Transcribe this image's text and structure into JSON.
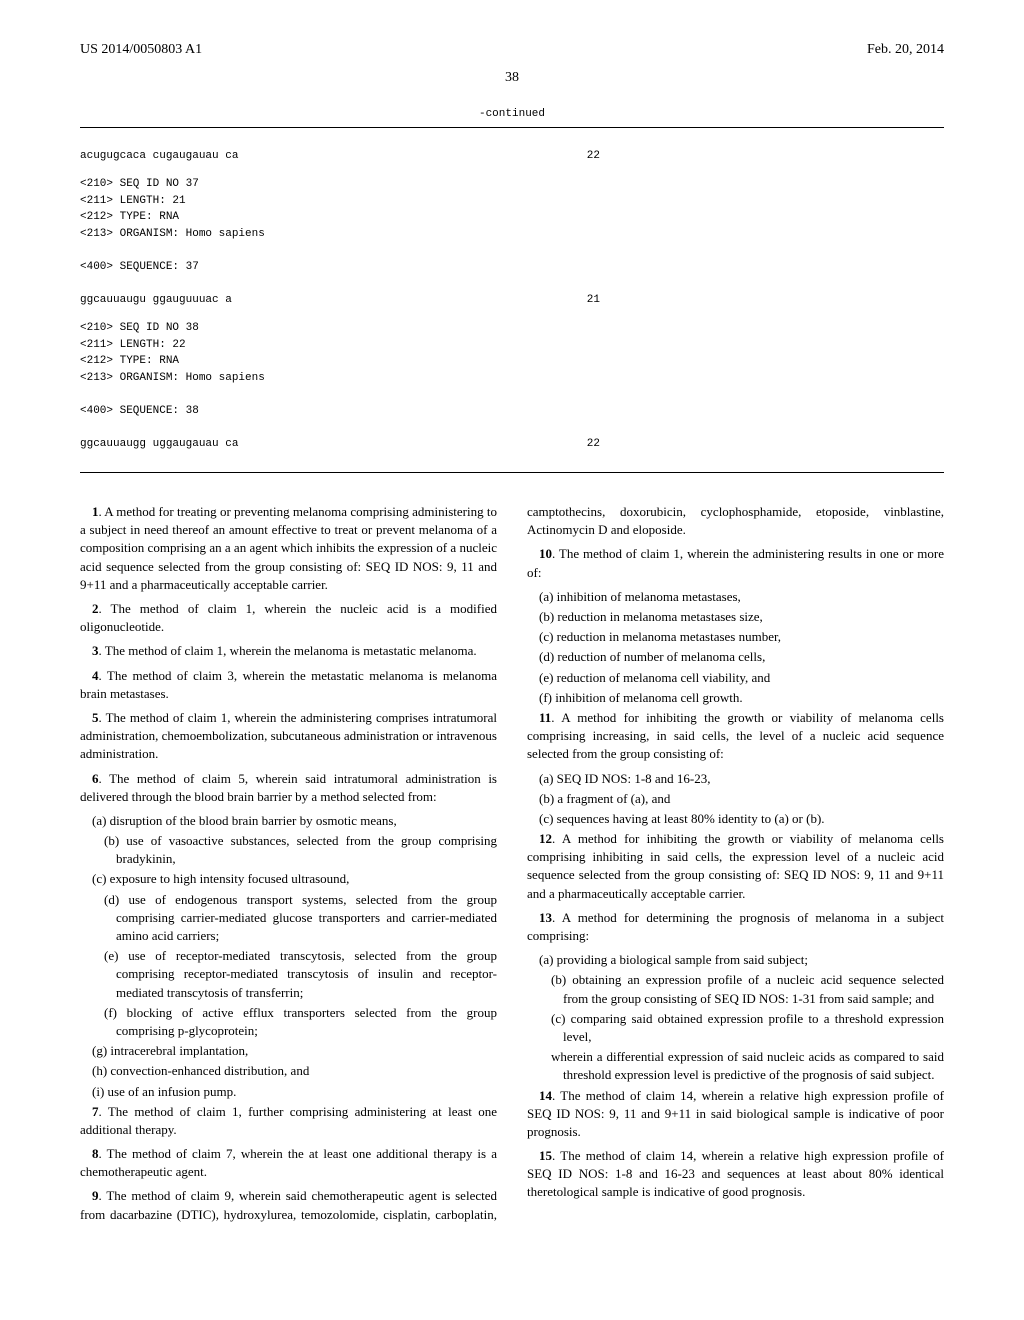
{
  "header": {
    "pub_number": "US 2014/0050803 A1",
    "date": "Feb. 20, 2014"
  },
  "page_number": "38",
  "continued_label": "-continued",
  "sequences": [
    {
      "lines": [
        {
          "text": "acugugcaca cugaugauau ca",
          "num": "22"
        }
      ]
    },
    {
      "meta": [
        "<210> SEQ ID NO 37",
        "<211> LENGTH: 21",
        "<212> TYPE: RNA",
        "<213> ORGANISM: Homo sapiens"
      ],
      "seq_label": "<400> SEQUENCE: 37",
      "lines": [
        {
          "text": "ggcauuaugu ggauguuuac a",
          "num": "21"
        }
      ]
    },
    {
      "meta": [
        "<210> SEQ ID NO 38",
        "<211> LENGTH: 22",
        "<212> TYPE: RNA",
        "<213> ORGANISM: Homo sapiens"
      ],
      "seq_label": "<400> SEQUENCE: 38",
      "lines": [
        {
          "text": "ggcauuaugg uggaugauau ca",
          "num": "22"
        }
      ]
    }
  ],
  "claims": {
    "c1": {
      "num": "1",
      "text": ". A method for treating or preventing melanoma comprising administering to a subject in need thereof an amount effective to treat or prevent melanoma of a composition comprising an a an agent which inhibits the expression of a nucleic acid sequence selected from the group consisting of: SEQ ID NOS: 9, 11 and 9+11 and a pharmaceutically acceptable carrier."
    },
    "c2": {
      "num": "2",
      "text": ". The method of claim 1, wherein the nucleic acid is a modified oligonucleotide."
    },
    "c3": {
      "num": "3",
      "text": ". The method of claim 1, wherein the melanoma is metastatic melanoma."
    },
    "c4": {
      "num": "4",
      "text": ". The method of claim 3, wherein the metastatic melanoma is melanoma brain metastases."
    },
    "c5": {
      "num": "5",
      "text": ". The method of claim 1, wherein the administering comprises intratumoral administration, chemoembolization, subcutaneous administration or intravenous administration."
    },
    "c6": {
      "num": "6",
      "text": ". The method of claim 5, wherein said intratumoral administration is delivered through the blood brain barrier by a method selected from:",
      "subs": [
        "(a) disruption of the blood brain barrier by osmotic means,",
        "(b) use of vasoactive substances, selected from the group comprising bradykinin,",
        "(c) exposure to high intensity focused ultrasound,",
        "(d) use of endogenous transport systems, selected from the group comprising carrier-mediated glucose transporters and carrier-mediated amino acid carriers;",
        "(e) use of receptor-mediated transcytosis, selected from the group comprising receptor-mediated transcytosis of insulin and receptor-mediated transcytosis of transferrin;",
        "(f) blocking of active efflux transporters selected from the group comprising p-glycoprotein;",
        "(g) intracerebral implantation,",
        "(h) convection-enhanced distribution, and",
        "(i) use of an infusion pump."
      ]
    },
    "c7": {
      "num": "7",
      "text": ". The method of claim 1, further comprising administering at least one additional therapy."
    },
    "c8": {
      "num": "8",
      "text": ". The method of claim 7, wherein the at least one additional therapy is a chemotherapeutic agent."
    },
    "c9": {
      "num": "9",
      "text": ". The method of claim 9, wherein said chemotherapeutic agent is selected from dacarbazine (DTIC), hydroxylurea, temozolomide, cisplatin, carboplatin, camptothecins, doxorubicin, cyclophosphamide, etoposide, vinblastine, Actinomycin D and eloposide."
    },
    "c10": {
      "num": "10",
      "text": ". The method of claim 1, wherein the administering results in one or more of:",
      "subs": [
        "(a) inhibition of melanoma metastases,",
        "(b) reduction in melanoma metastases size,",
        "(c) reduction in melanoma metastases number,",
        "(d) reduction of number of melanoma cells,",
        "(e) reduction of melanoma cell viability, and",
        "(f) inhibition of melanoma cell growth."
      ]
    },
    "c11": {
      "num": "11",
      "text": ". A method for inhibiting the growth or viability of melanoma cells comprising increasing, in said cells, the level of a nucleic acid sequence selected from the group consisting of:",
      "subs": [
        "(a) SEQ ID NOS: 1-8 and 16-23,",
        "(b) a fragment of (a), and",
        "(c) sequences having at least 80% identity to (a) or (b)."
      ]
    },
    "c12": {
      "num": "12",
      "text": ". A method for inhibiting the growth or viability of melanoma cells comprising inhibiting in said cells, the expression level of a nucleic acid sequence selected from the group consisting of: SEQ ID NOS: 9, 11 and 9+11 and a pharmaceutically acceptable carrier."
    },
    "c13": {
      "num": "13",
      "text": ". A method for determining the prognosis of melanoma in a subject comprising:",
      "subs": [
        "(a) providing a biological sample from said subject;",
        "(b) obtaining an expression profile of a nucleic acid sequence selected from the group consisting of SEQ ID NOS: 1-31 from said sample; and",
        "(c) comparing said obtained expression profile to a threshold expression level,",
        "wherein a differential expression of said nucleic acids as compared to said threshold expression level is predictive of the prognosis of said subject."
      ]
    },
    "c14": {
      "num": "14",
      "text": ". The method of claim 14, wherein a relative high expression profile of SEQ ID NOS: 9, 11 and 9+11 in said biological sample is indicative of poor prognosis."
    },
    "c15": {
      "num": "15",
      "text": ". The method of claim 14, wherein a relative high expression profile of SEQ ID NOS: 1-8 and 16-23 and sequences at least about 80% identical theretological sample is indicative of good prognosis."
    }
  }
}
